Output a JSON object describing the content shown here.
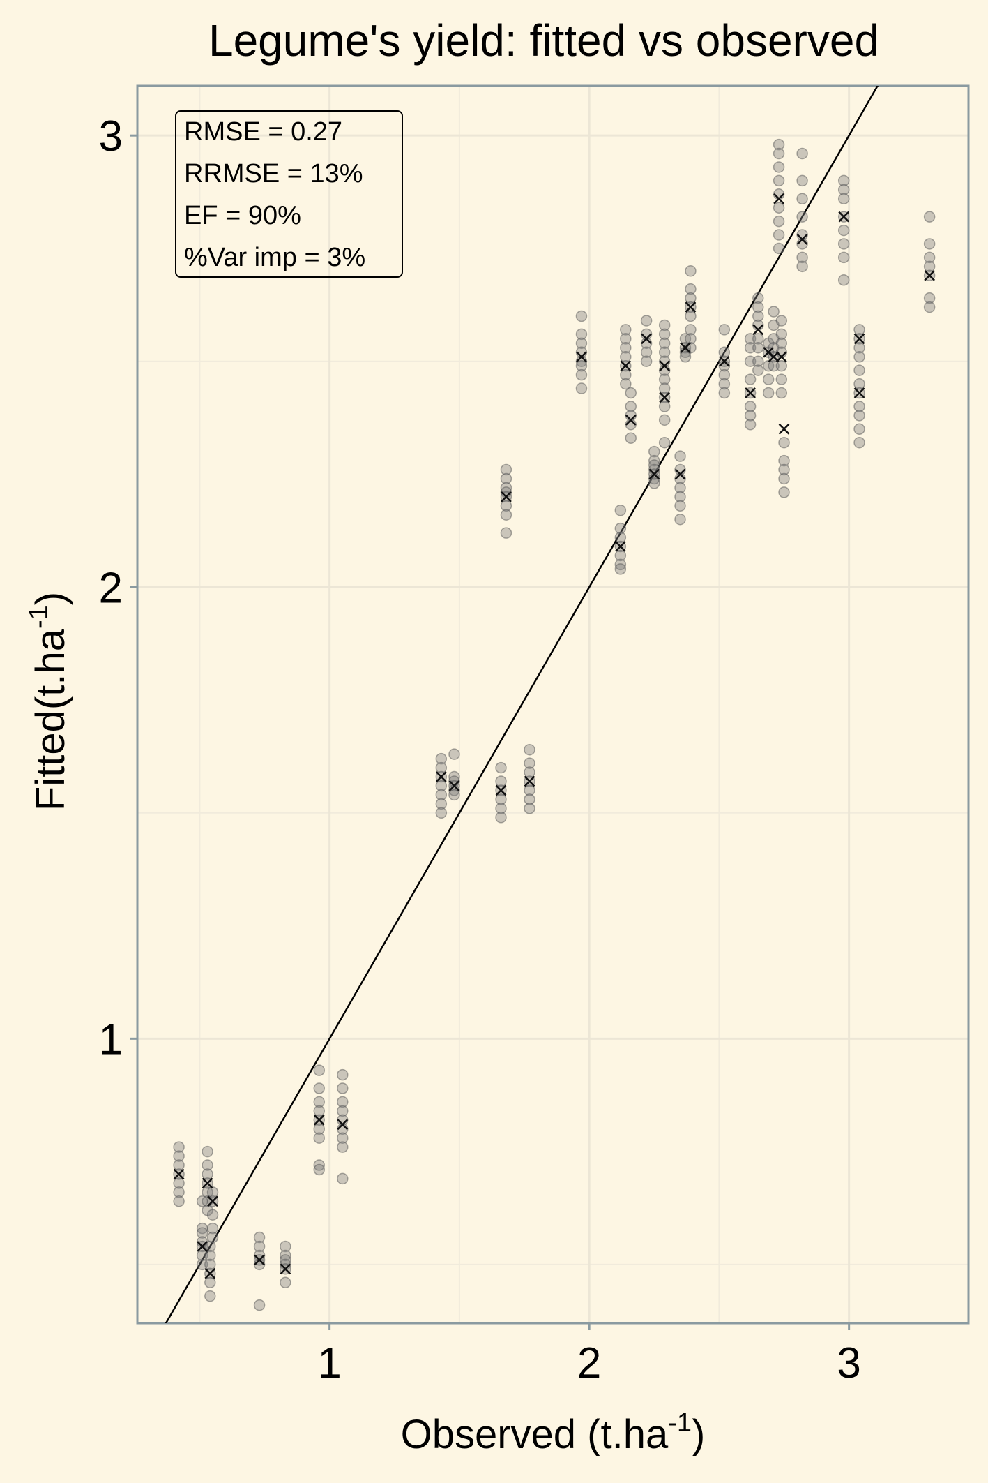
{
  "chart_data": {
    "type": "scatter",
    "title": "Legume's yield: fitted vs observed",
    "xlabel": {
      "main": "Observed (t.ha",
      "sup": "-1",
      "tail": ")"
    },
    "ylabel": {
      "main": "Fitted(t.ha",
      "sup": "-1",
      "tail": ")"
    },
    "xlim": [
      0.26,
      3.46
    ],
    "ylim": [
      0.37,
      3.11
    ],
    "x_ticks": [
      1,
      2,
      3
    ],
    "y_ticks": [
      1,
      2,
      3
    ],
    "x_minor": [
      0.5,
      1.5,
      2.5
    ],
    "y_minor": [
      0.5,
      1.5,
      2.5
    ],
    "grid": true,
    "reference_line": {
      "slope": 1,
      "intercept": 0,
      "label": "1:1 line"
    },
    "stats": [
      "RMSE = 0.27",
      "RRMSE = 13%",
      "EF = 90%",
      "%Var imp = 3%"
    ],
    "series": [
      {
        "name": "fitted",
        "marker": "circle",
        "points": [
          [
            0.42,
            0.76
          ],
          [
            0.42,
            0.74
          ],
          [
            0.42,
            0.72
          ],
          [
            0.42,
            0.7
          ],
          [
            0.42,
            0.68
          ],
          [
            0.42,
            0.66
          ],
          [
            0.42,
            0.64
          ],
          [
            0.51,
            0.64
          ],
          [
            0.51,
            0.58
          ],
          [
            0.51,
            0.57
          ],
          [
            0.51,
            0.55
          ],
          [
            0.51,
            0.54
          ],
          [
            0.51,
            0.52
          ],
          [
            0.51,
            0.5
          ],
          [
            0.53,
            0.75
          ],
          [
            0.53,
            0.72
          ],
          [
            0.53,
            0.7
          ],
          [
            0.53,
            0.68
          ],
          [
            0.53,
            0.66
          ],
          [
            0.53,
            0.64
          ],
          [
            0.53,
            0.62
          ],
          [
            0.54,
            0.54
          ],
          [
            0.54,
            0.52
          ],
          [
            0.54,
            0.5
          ],
          [
            0.54,
            0.48
          ],
          [
            0.54,
            0.46
          ],
          [
            0.54,
            0.43
          ],
          [
            0.55,
            0.66
          ],
          [
            0.55,
            0.64
          ],
          [
            0.55,
            0.61
          ],
          [
            0.55,
            0.58
          ],
          [
            0.55,
            0.56
          ],
          [
            0.73,
            0.56
          ],
          [
            0.73,
            0.54
          ],
          [
            0.73,
            0.52
          ],
          [
            0.73,
            0.51
          ],
          [
            0.73,
            0.5
          ],
          [
            0.73,
            0.41
          ],
          [
            0.83,
            0.54
          ],
          [
            0.83,
            0.52
          ],
          [
            0.83,
            0.51
          ],
          [
            0.83,
            0.5
          ],
          [
            0.83,
            0.49
          ],
          [
            0.83,
            0.46
          ],
          [
            0.96,
            0.93
          ],
          [
            0.96,
            0.89
          ],
          [
            0.96,
            0.86
          ],
          [
            0.96,
            0.84
          ],
          [
            0.96,
            0.82
          ],
          [
            0.96,
            0.8
          ],
          [
            0.96,
            0.78
          ],
          [
            0.96,
            0.72
          ],
          [
            0.96,
            0.71
          ],
          [
            1.05,
            0.92
          ],
          [
            1.05,
            0.89
          ],
          [
            1.05,
            0.86
          ],
          [
            1.05,
            0.84
          ],
          [
            1.05,
            0.82
          ],
          [
            1.05,
            0.8
          ],
          [
            1.05,
            0.78
          ],
          [
            1.05,
            0.76
          ],
          [
            1.05,
            0.69
          ],
          [
            1.43,
            1.62
          ],
          [
            1.43,
            1.6
          ],
          [
            1.43,
            1.58
          ],
          [
            1.43,
            1.56
          ],
          [
            1.43,
            1.54
          ],
          [
            1.43,
            1.52
          ],
          [
            1.43,
            1.5
          ],
          [
            1.48,
            1.63
          ],
          [
            1.48,
            1.58
          ],
          [
            1.48,
            1.57
          ],
          [
            1.48,
            1.56
          ],
          [
            1.48,
            1.55
          ],
          [
            1.48,
            1.54
          ],
          [
            1.66,
            1.6
          ],
          [
            1.66,
            1.57
          ],
          [
            1.66,
            1.55
          ],
          [
            1.66,
            1.53
          ],
          [
            1.66,
            1.51
          ],
          [
            1.66,
            1.49
          ],
          [
            1.68,
            2.26
          ],
          [
            1.68,
            2.24
          ],
          [
            1.68,
            2.22
          ],
          [
            1.68,
            2.21
          ],
          [
            1.68,
            2.2
          ],
          [
            1.68,
            2.18
          ],
          [
            1.68,
            2.16
          ],
          [
            1.68,
            2.12
          ],
          [
            1.77,
            1.64
          ],
          [
            1.77,
            1.61
          ],
          [
            1.77,
            1.59
          ],
          [
            1.77,
            1.57
          ],
          [
            1.77,
            1.55
          ],
          [
            1.77,
            1.53
          ],
          [
            1.77,
            1.51
          ],
          [
            1.97,
            2.6
          ],
          [
            1.97,
            2.56
          ],
          [
            1.97,
            2.54
          ],
          [
            1.97,
            2.52
          ],
          [
            1.97,
            2.5
          ],
          [
            1.97,
            2.49
          ],
          [
            1.97,
            2.47
          ],
          [
            1.97,
            2.44
          ],
          [
            2.12,
            2.17
          ],
          [
            2.12,
            2.13
          ],
          [
            2.12,
            2.11
          ],
          [
            2.12,
            2.09
          ],
          [
            2.12,
            2.07
          ],
          [
            2.12,
            2.05
          ],
          [
            2.12,
            2.04
          ],
          [
            2.14,
            2.57
          ],
          [
            2.14,
            2.55
          ],
          [
            2.14,
            2.53
          ],
          [
            2.14,
            2.51
          ],
          [
            2.14,
            2.49
          ],
          [
            2.14,
            2.47
          ],
          [
            2.14,
            2.45
          ],
          [
            2.16,
            2.43
          ],
          [
            2.16,
            2.4
          ],
          [
            2.16,
            2.38
          ],
          [
            2.16,
            2.36
          ],
          [
            2.16,
            2.33
          ],
          [
            2.22,
            2.59
          ],
          [
            2.22,
            2.56
          ],
          [
            2.22,
            2.54
          ],
          [
            2.22,
            2.52
          ],
          [
            2.22,
            2.5
          ],
          [
            2.25,
            2.3
          ],
          [
            2.25,
            2.28
          ],
          [
            2.25,
            2.27
          ],
          [
            2.25,
            2.26
          ],
          [
            2.25,
            2.25
          ],
          [
            2.25,
            2.24
          ],
          [
            2.25,
            2.23
          ],
          [
            2.29,
            2.58
          ],
          [
            2.29,
            2.56
          ],
          [
            2.29,
            2.54
          ],
          [
            2.29,
            2.52
          ],
          [
            2.29,
            2.5
          ],
          [
            2.29,
            2.48
          ],
          [
            2.29,
            2.46
          ],
          [
            2.29,
            2.44
          ],
          [
            2.29,
            2.42
          ],
          [
            2.29,
            2.4
          ],
          [
            2.29,
            2.37
          ],
          [
            2.29,
            2.32
          ],
          [
            2.35,
            2.29
          ],
          [
            2.35,
            2.26
          ],
          [
            2.35,
            2.24
          ],
          [
            2.35,
            2.22
          ],
          [
            2.35,
            2.2
          ],
          [
            2.35,
            2.18
          ],
          [
            2.35,
            2.15
          ],
          [
            2.37,
            2.55
          ],
          [
            2.37,
            2.53
          ],
          [
            2.37,
            2.52
          ],
          [
            2.37,
            2.51
          ],
          [
            2.39,
            2.7
          ],
          [
            2.39,
            2.66
          ],
          [
            2.39,
            2.64
          ],
          [
            2.39,
            2.62
          ],
          [
            2.39,
            2.6
          ],
          [
            2.39,
            2.57
          ],
          [
            2.39,
            2.55
          ],
          [
            2.39,
            2.53
          ],
          [
            2.52,
            2.57
          ],
          [
            2.52,
            2.52
          ],
          [
            2.52,
            2.5
          ],
          [
            2.52,
            2.49
          ],
          [
            2.52,
            2.47
          ],
          [
            2.52,
            2.45
          ],
          [
            2.52,
            2.43
          ],
          [
            2.62,
            2.55
          ],
          [
            2.62,
            2.53
          ],
          [
            2.62,
            2.5
          ],
          [
            2.62,
            2.46
          ],
          [
            2.62,
            2.43
          ],
          [
            2.62,
            2.4
          ],
          [
            2.62,
            2.38
          ],
          [
            2.62,
            2.36
          ],
          [
            2.65,
            2.64
          ],
          [
            2.65,
            2.62
          ],
          [
            2.65,
            2.6
          ],
          [
            2.65,
            2.58
          ],
          [
            2.65,
            2.55
          ],
          [
            2.65,
            2.53
          ],
          [
            2.65,
            2.5
          ],
          [
            2.65,
            2.48
          ],
          [
            2.69,
            2.54
          ],
          [
            2.69,
            2.52
          ],
          [
            2.69,
            2.49
          ],
          [
            2.69,
            2.46
          ],
          [
            2.69,
            2.43
          ],
          [
            2.71,
            2.61
          ],
          [
            2.71,
            2.58
          ],
          [
            2.71,
            2.55
          ],
          [
            2.71,
            2.53
          ],
          [
            2.71,
            2.51
          ],
          [
            2.71,
            2.49
          ],
          [
            2.73,
            2.98
          ],
          [
            2.73,
            2.96
          ],
          [
            2.73,
            2.93
          ],
          [
            2.73,
            2.9
          ],
          [
            2.73,
            2.87
          ],
          [
            2.73,
            2.84
          ],
          [
            2.73,
            2.81
          ],
          [
            2.73,
            2.78
          ],
          [
            2.73,
            2.75
          ],
          [
            2.74,
            2.59
          ],
          [
            2.74,
            2.56
          ],
          [
            2.74,
            2.54
          ],
          [
            2.74,
            2.52
          ],
          [
            2.74,
            2.49
          ],
          [
            2.74,
            2.46
          ],
          [
            2.74,
            2.43
          ],
          [
            2.75,
            2.32
          ],
          [
            2.75,
            2.28
          ],
          [
            2.75,
            2.26
          ],
          [
            2.75,
            2.24
          ],
          [
            2.75,
            2.21
          ],
          [
            2.82,
            2.96
          ],
          [
            2.82,
            2.9
          ],
          [
            2.82,
            2.86
          ],
          [
            2.82,
            2.82
          ],
          [
            2.82,
            2.78
          ],
          [
            2.82,
            2.76
          ],
          [
            2.82,
            2.73
          ],
          [
            2.82,
            2.71
          ],
          [
            2.98,
            2.9
          ],
          [
            2.98,
            2.88
          ],
          [
            2.98,
            2.86
          ],
          [
            2.98,
            2.82
          ],
          [
            2.98,
            2.79
          ],
          [
            2.98,
            2.76
          ],
          [
            2.98,
            2.73
          ],
          [
            2.98,
            2.68
          ],
          [
            3.04,
            2.57
          ],
          [
            3.04,
            2.55
          ],
          [
            3.04,
            2.53
          ],
          [
            3.04,
            2.51
          ],
          [
            3.04,
            2.48
          ],
          [
            3.04,
            2.45
          ],
          [
            3.04,
            2.43
          ],
          [
            3.04,
            2.4
          ],
          [
            3.04,
            2.38
          ],
          [
            3.04,
            2.35
          ],
          [
            3.04,
            2.32
          ],
          [
            3.31,
            2.82
          ],
          [
            3.31,
            2.76
          ],
          [
            3.31,
            2.73
          ],
          [
            3.31,
            2.71
          ],
          [
            3.31,
            2.69
          ],
          [
            3.31,
            2.64
          ],
          [
            3.31,
            2.62
          ]
        ]
      },
      {
        "name": "mean",
        "marker": "x",
        "points": [
          [
            0.42,
            0.7
          ],
          [
            0.51,
            0.54
          ],
          [
            0.53,
            0.68
          ],
          [
            0.54,
            0.48
          ],
          [
            0.55,
            0.64
          ],
          [
            0.73,
            0.51
          ],
          [
            0.83,
            0.49
          ],
          [
            0.96,
            0.82
          ],
          [
            1.05,
            0.81
          ],
          [
            1.43,
            1.58
          ],
          [
            1.48,
            1.56
          ],
          [
            1.66,
            1.55
          ],
          [
            1.68,
            2.2
          ],
          [
            1.77,
            1.57
          ],
          [
            1.97,
            2.51
          ],
          [
            2.12,
            2.09
          ],
          [
            2.14,
            2.49
          ],
          [
            2.16,
            2.37
          ],
          [
            2.22,
            2.55
          ],
          [
            2.25,
            2.25
          ],
          [
            2.29,
            2.49
          ],
          [
            2.29,
            2.42
          ],
          [
            2.35,
            2.25
          ],
          [
            2.37,
            2.53
          ],
          [
            2.39,
            2.62
          ],
          [
            2.52,
            2.5
          ],
          [
            2.62,
            2.43
          ],
          [
            2.65,
            2.57
          ],
          [
            2.69,
            2.52
          ],
          [
            2.71,
            2.51
          ],
          [
            2.73,
            2.86
          ],
          [
            2.74,
            2.51
          ],
          [
            2.75,
            2.35
          ],
          [
            2.82,
            2.77
          ],
          [
            2.98,
            2.82
          ],
          [
            3.04,
            2.55
          ],
          [
            3.04,
            2.43
          ],
          [
            3.31,
            2.69
          ]
        ]
      }
    ]
  }
}
